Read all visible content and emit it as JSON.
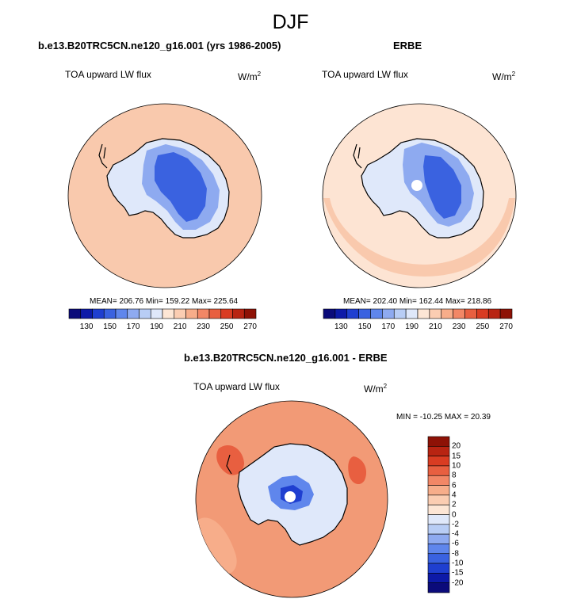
{
  "figure": {
    "title": "DJF"
  },
  "panels": [
    {
      "title": "b.e13.B20TRC5CN.ne120_g16.001 (yrs 1986-2005)",
      "variable": "TOA upward LW flux",
      "units": "W/m",
      "units_superscript": "2",
      "stats": "MEAN= 206.76  Min= 159.22  Max= 225.64"
    },
    {
      "title": "ERBE",
      "variable": "TOA upward LW flux",
      "units": "W/m",
      "units_superscript": "2",
      "stats": "MEAN= 202.40  Min= 162.44  Max= 218.86"
    },
    {
      "title": "b.e13.B20TRC5CN.ne120_g16.001 - ERBE",
      "variable": "TOA upward LW flux",
      "units": "W/m",
      "units_superscript": "2",
      "stats": "MIN = -10.25 MAX =  20.39"
    }
  ],
  "colorbars": {
    "absolute": {
      "tick_labels": [
        "130",
        "150",
        "170",
        "190",
        "210",
        "230",
        "250",
        "270"
      ],
      "colors": [
        "#0b0b7a",
        "#0d1aa8",
        "#1f3fd0",
        "#3a62e0",
        "#5f86ec",
        "#8eaaf0",
        "#b8cdf5",
        "#dfe8fa",
        "#fde6d5",
        "#fbcdb2",
        "#f7ad8a",
        "#f28766",
        "#e85f40",
        "#d93c22",
        "#b82412",
        "#8e1206"
      ]
    },
    "difference": {
      "tick_labels": [
        "20",
        "15",
        "10",
        "8",
        "6",
        "4",
        "2",
        "0",
        "-2",
        "-4",
        "-6",
        "-8",
        "-10",
        "-15",
        "-20"
      ],
      "colors": [
        "#8e1206",
        "#b82412",
        "#d93c22",
        "#e85f40",
        "#f28766",
        "#f7ad8a",
        "#fbcdb2",
        "#fde6d5",
        "#dfe8fa",
        "#b8cdf5",
        "#8eaaf0",
        "#5f86ec",
        "#3a62e0",
        "#1f3fd0",
        "#0d1aa8",
        "#0b0b7a"
      ]
    }
  },
  "map_colors": {
    "ocean_model": "#f9c9ad",
    "ocean_obs": "#fde4d3",
    "ocean_diff": "#f29a76",
    "ice_light": "#dfe8fa",
    "ice_mid": "#8eaaf0",
    "ice_dark": "#3a62e0",
    "coast": "#000000"
  }
}
